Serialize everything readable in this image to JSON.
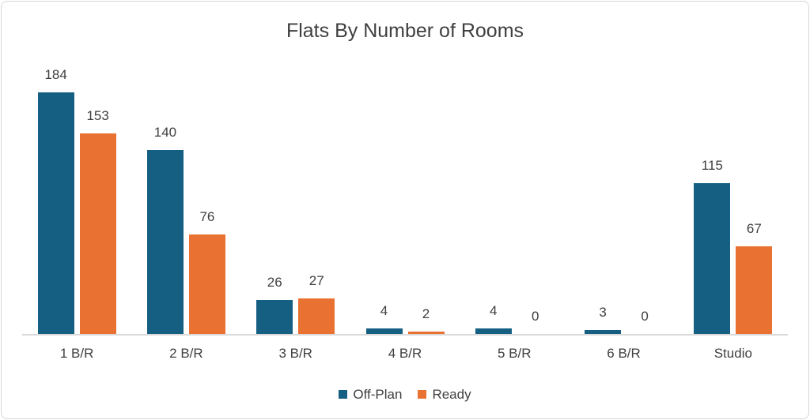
{
  "chart_data": {
    "type": "bar",
    "title": "Flats By Number of Rooms",
    "categories": [
      "1 B/R",
      "2 B/R",
      "3 B/R",
      "4 B/R",
      "5 B/R",
      "6 B/R",
      "Studio"
    ],
    "series": [
      {
        "name": "Off-Plan",
        "color": "#156082",
        "values": [
          184,
          140,
          26,
          4,
          4,
          3,
          115
        ]
      },
      {
        "name": "Ready",
        "color": "#E97132",
        "values": [
          153,
          76,
          27,
          2,
          0,
          0,
          67
        ]
      }
    ],
    "ylim": [
      0,
      184
    ],
    "grid": false,
    "y_axis_visible": false,
    "data_labels": true,
    "legend_position": "bottom"
  },
  "style": {
    "text_color": "#404040",
    "title_color": "#3f3f3f",
    "axis_line_color": "#d9d9d9",
    "card_border_color": "#d6d6d6",
    "background_color": "#ffffff"
  }
}
